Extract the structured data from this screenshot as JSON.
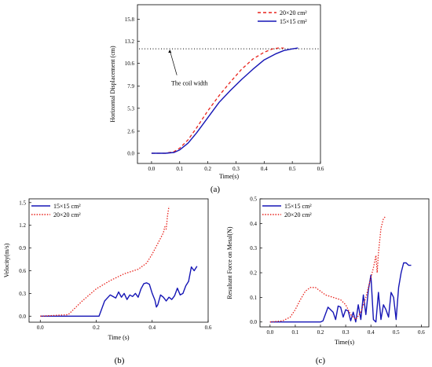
{
  "captions": {
    "a": "(a)",
    "b": "(b)",
    "c": "(c)"
  },
  "chart_data": [
    {
      "type": "line",
      "panel": "a",
      "xlabel": "Time(s)",
      "ylabel": "Horizontal Displacement (cm)",
      "xlim": [
        -0.05,
        0.6
      ],
      "ylim": [
        -1.2,
        17.5
      ],
      "xticks": [
        0.0,
        0.1,
        0.2,
        0.3,
        0.4,
        0.5,
        0.6
      ],
      "yticks": [
        0.0,
        2.6,
        5.3,
        7.9,
        10.6,
        13.2,
        15.8
      ],
      "grid": false,
      "legend_position": "top-right",
      "annotation": {
        "text": "The coil width",
        "y": 12.3
      },
      "series": [
        {
          "name": "20×20 cm²",
          "color": "#e8221b",
          "dash": "dashed",
          "x": [
            0.0,
            0.05,
            0.08,
            0.1,
            0.13,
            0.16,
            0.2,
            0.24,
            0.28,
            0.32,
            0.36,
            0.4,
            0.43,
            0.45,
            0.47
          ],
          "y": [
            0.0,
            0.0,
            0.2,
            0.6,
            1.6,
            3.0,
            5.0,
            6.8,
            8.4,
            9.9,
            11.1,
            11.9,
            12.3,
            12.4,
            12.4
          ]
        },
        {
          "name": "15×15 cm²",
          "color": "#1515b5",
          "dash": "solid",
          "x": [
            0.0,
            0.05,
            0.08,
            0.1,
            0.13,
            0.16,
            0.2,
            0.24,
            0.28,
            0.32,
            0.36,
            0.4,
            0.44,
            0.47,
            0.5,
            0.52
          ],
          "y": [
            0.0,
            0.0,
            0.1,
            0.4,
            1.2,
            2.4,
            4.2,
            6.0,
            7.4,
            8.7,
            9.9,
            11.0,
            11.7,
            12.1,
            12.3,
            12.4
          ]
        }
      ]
    },
    {
      "type": "line",
      "panel": "b",
      "xlabel": "Time (s)",
      "ylabel": "Velocity(m/s)",
      "xlim": [
        -0.04,
        0.6
      ],
      "ylim": [
        -0.08,
        1.55
      ],
      "xticks": [
        0.0,
        0.2,
        0.4,
        0.6
      ],
      "yticks": [
        0.0,
        0.3,
        0.6,
        0.9,
        1.2,
        1.5
      ],
      "grid": false,
      "legend_position": "top-left",
      "series": [
        {
          "name": "15×15 cm²",
          "color": "#1515b5",
          "dash": "solid",
          "x": [
            0.0,
            0.1,
            0.21,
            0.23,
            0.25,
            0.27,
            0.28,
            0.29,
            0.3,
            0.31,
            0.32,
            0.33,
            0.34,
            0.35,
            0.36,
            0.37,
            0.38,
            0.39,
            0.4,
            0.41,
            0.415,
            0.42,
            0.43,
            0.44,
            0.45,
            0.46,
            0.47,
            0.48,
            0.49,
            0.5,
            0.51,
            0.52,
            0.53,
            0.54,
            0.55,
            0.56
          ],
          "y": [
            0.0,
            0.0,
            0.0,
            0.2,
            0.28,
            0.24,
            0.32,
            0.25,
            0.3,
            0.22,
            0.28,
            0.26,
            0.3,
            0.25,
            0.36,
            0.43,
            0.44,
            0.42,
            0.3,
            0.21,
            0.12,
            0.15,
            0.28,
            0.25,
            0.2,
            0.25,
            0.22,
            0.27,
            0.37,
            0.28,
            0.3,
            0.4,
            0.46,
            0.65,
            0.6,
            0.66
          ]
        },
        {
          "name": "20×20 cm²",
          "color": "#e8221b",
          "dash": "dotted",
          "x": [
            0.0,
            0.1,
            0.15,
            0.2,
            0.25,
            0.3,
            0.35,
            0.38,
            0.4,
            0.42,
            0.44,
            0.445,
            0.45,
            0.455,
            0.46
          ],
          "y": [
            0.0,
            0.02,
            0.2,
            0.36,
            0.47,
            0.56,
            0.62,
            0.7,
            0.82,
            0.96,
            1.1,
            1.18,
            1.15,
            1.33,
            1.45
          ]
        }
      ]
    },
    {
      "type": "line",
      "panel": "c",
      "xlabel": "Time(s)",
      "ylabel": "Resultant Force on Metal(N)",
      "xlim": [
        -0.04,
        0.63
      ],
      "ylim": [
        -0.02,
        0.5
      ],
      "xticks": [
        0.0,
        0.1,
        0.2,
        0.3,
        0.4,
        0.5,
        0.6
      ],
      "yticks": [
        0.0,
        0.1,
        0.2,
        0.3,
        0.4,
        0.5
      ],
      "grid": false,
      "legend_position": "top-left",
      "series": [
        {
          "name": "15×15 cm²",
          "color": "#1515b5",
          "dash": "solid",
          "x": [
            0.0,
            0.1,
            0.2,
            0.21,
            0.23,
            0.25,
            0.26,
            0.27,
            0.28,
            0.29,
            0.3,
            0.31,
            0.32,
            0.33,
            0.34,
            0.35,
            0.36,
            0.37,
            0.38,
            0.39,
            0.4,
            0.41,
            0.42,
            0.43,
            0.44,
            0.45,
            0.46,
            0.47,
            0.48,
            0.49,
            0.5,
            0.51,
            0.52,
            0.53,
            0.54,
            0.55,
            0.56
          ],
          "y": [
            0.0,
            0.0,
            0.0,
            0.005,
            0.06,
            0.04,
            0.01,
            0.065,
            0.06,
            0.02,
            0.05,
            0.045,
            0.005,
            0.04,
            0.0,
            0.07,
            0.01,
            0.11,
            0.03,
            0.13,
            0.19,
            0.01,
            0.0,
            0.12,
            0.01,
            0.07,
            0.05,
            0.02,
            0.12,
            0.1,
            0.01,
            0.14,
            0.2,
            0.24,
            0.24,
            0.23,
            0.23
          ]
        },
        {
          "name": "20×20 cm²",
          "color": "#e8221b",
          "dash": "dotted",
          "x": [
            0.0,
            0.05,
            0.08,
            0.1,
            0.12,
            0.14,
            0.16,
            0.18,
            0.2,
            0.22,
            0.25,
            0.28,
            0.3,
            0.32,
            0.34,
            0.36,
            0.38,
            0.4,
            0.41,
            0.42,
            0.425,
            0.43,
            0.44,
            0.45,
            0.46
          ],
          "y": [
            0.0,
            0.005,
            0.02,
            0.05,
            0.09,
            0.125,
            0.14,
            0.14,
            0.125,
            0.11,
            0.1,
            0.09,
            0.07,
            0.03,
            0.01,
            0.04,
            0.1,
            0.18,
            0.22,
            0.27,
            0.2,
            0.28,
            0.38,
            0.42,
            0.43
          ]
        }
      ]
    }
  ]
}
